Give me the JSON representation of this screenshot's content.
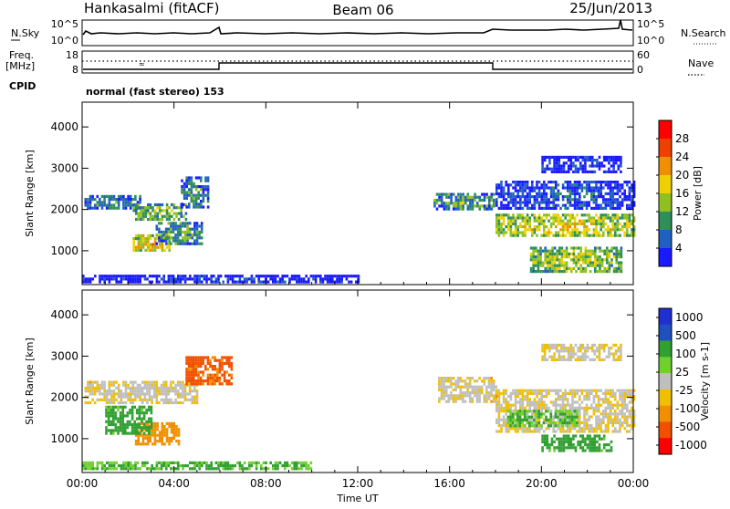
{
  "header": {
    "station": "Hankasalmi (fitACF)",
    "beam": "Beam 06",
    "date": "25/Jun/2013"
  },
  "status_panels": {
    "nsky_label": "N.Sky",
    "nsky_ticks": [
      "10^5",
      "10^0"
    ],
    "nsearch_label": "N.Search",
    "nsearch_ticks": [
      "10^5",
      "10^0"
    ],
    "freq_label_top": "Freq.",
    "freq_label_unit": "[MHz]",
    "freq_ticks": [
      "18",
      "8"
    ],
    "nave_label": "Nave",
    "nave_ticks": [
      "60",
      "0"
    ],
    "cpid_label": "CPID",
    "cpid_text": "normal (fast stereo) 153"
  },
  "colors": {
    "frame": "#000000",
    "power_scale": [
      "#1a1aff",
      "#2060c0",
      "#2f8f5a",
      "#8fc020",
      "#f0d000",
      "#f09000",
      "#f04000",
      "#ff0000"
    ],
    "velocity_scale": [
      "#ff0000",
      "#f05000",
      "#f09000",
      "#f0c000",
      "#bfbfbf",
      "#bfbfbf",
      "#70d030",
      "#30a030",
      "#2070a0",
      "#2050c0",
      "#2030d0"
    ]
  },
  "chart_data": [
    {
      "type": "heatmap",
      "name": "power",
      "ylabel": "Slant Range [km]",
      "ylim": [
        180,
        4600
      ],
      "yticks": [
        "1000",
        "2000",
        "3000",
        "4000"
      ],
      "xlim": [
        0,
        24
      ],
      "colorbar_label": "Power [dB]",
      "colorbar_ticks": [
        "4",
        "8",
        "12",
        "16",
        "20",
        "24",
        "28"
      ],
      "regions": [
        {
          "t": [
            0.1,
            2.5
          ],
          "r": [
            2050,
            2350
          ],
          "v": 12
        },
        {
          "t": [
            2.2,
            4.5
          ],
          "r": [
            1750,
            2150
          ],
          "v": 16
        },
        {
          "t": [
            2.2,
            3.8
          ],
          "r": [
            1000,
            1400
          ],
          "v": 22
        },
        {
          "t": [
            3.2,
            5.2
          ],
          "r": [
            1200,
            1700
          ],
          "v": 14
        },
        {
          "t": [
            4.3,
            5.5
          ],
          "r": [
            2050,
            2800
          ],
          "v": 12
        },
        {
          "t": [
            0.0,
            12.0
          ],
          "r": [
            250,
            420
          ],
          "v": 6
        },
        {
          "t": [
            15.3,
            17.9
          ],
          "r": [
            2000,
            2400
          ],
          "v": 14
        },
        {
          "t": [
            18.0,
            24.0
          ],
          "r": [
            1350,
            1900
          ],
          "v": 20
        },
        {
          "t": [
            19.5,
            23.5
          ],
          "r": [
            500,
            1100
          ],
          "v": 18
        },
        {
          "t": [
            18.0,
            24.0
          ],
          "r": [
            2000,
            2700
          ],
          "v": 8
        },
        {
          "t": [
            20.0,
            23.5
          ],
          "r": [
            2900,
            3300
          ],
          "v": 6
        }
      ]
    },
    {
      "type": "heatmap",
      "name": "velocity",
      "ylabel": "Slant Range [km]",
      "ylim": [
        180,
        4600
      ],
      "yticks": [
        "1000",
        "2000",
        "3000",
        "4000"
      ],
      "xlim": [
        0,
        24
      ],
      "xlabel": "Time UT",
      "xticks": [
        "00:00",
        "04:00",
        "08:00",
        "12:00",
        "16:00",
        "20:00",
        "00:00"
      ],
      "colorbar_label": "Velocity [m s-1]",
      "colorbar_ticks": [
        "1000",
        "500",
        "100",
        "25",
        "-25",
        "-100",
        "-500",
        "-1000"
      ],
      "regions": [
        {
          "t": [
            0.1,
            5.0
          ],
          "r": [
            1900,
            2400
          ],
          "v": 0
        },
        {
          "t": [
            2.3,
            4.2
          ],
          "r": [
            850,
            1400
          ],
          "v": -120
        },
        {
          "t": [
            1.0,
            3.0
          ],
          "r": [
            1100,
            1800
          ],
          "v": 150
        },
        {
          "t": [
            4.5,
            6.5
          ],
          "r": [
            2300,
            3000
          ],
          "v": -300
        },
        {
          "t": [
            0.0,
            10.0
          ],
          "r": [
            280,
            450
          ],
          "v": 120
        },
        {
          "t": [
            15.5,
            18.0
          ],
          "r": [
            1900,
            2500
          ],
          "v": 0
        },
        {
          "t": [
            18.0,
            24.0
          ],
          "r": [
            1200,
            2200
          ],
          "v": 0
        },
        {
          "t": [
            20.0,
            23.0
          ],
          "r": [
            700,
            1100
          ],
          "v": 150
        },
        {
          "t": [
            18.5,
            21.5
          ],
          "r": [
            1300,
            1700
          ],
          "v": 120
        },
        {
          "t": [
            20.0,
            23.5
          ],
          "r": [
            2900,
            3300
          ],
          "v": 0
        }
      ]
    }
  ]
}
